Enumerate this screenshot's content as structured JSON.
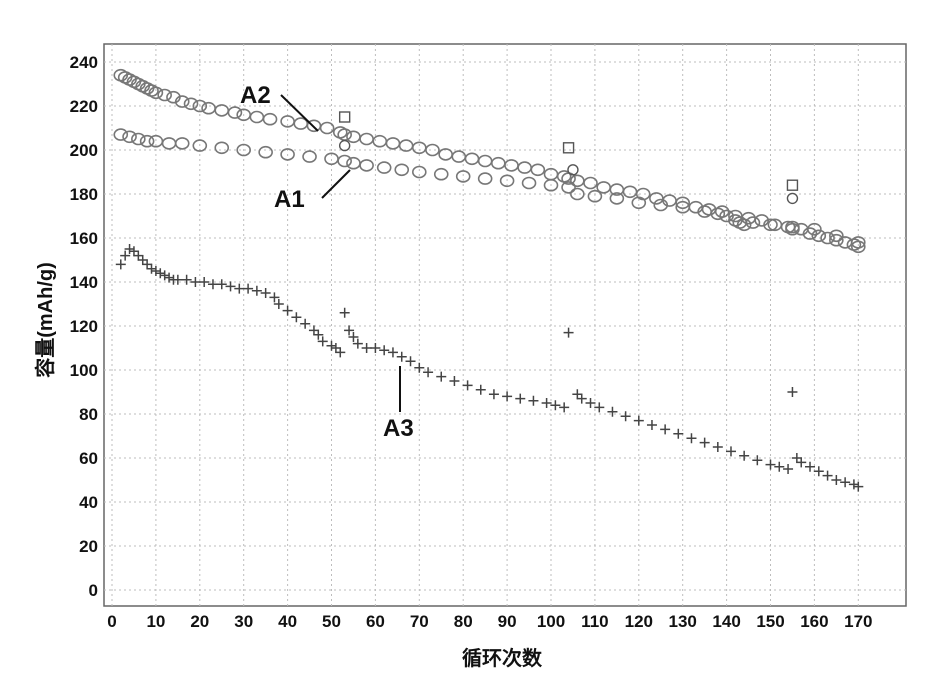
{
  "chart_data": {
    "type": "scatter",
    "xlabel": "循环次数",
    "ylabel": "容量(mAh/g)",
    "xlim": [
      0,
      180
    ],
    "ylim": [
      0,
      245
    ],
    "x_ticks": [
      "0",
      "10",
      "20",
      "30",
      "40",
      "50",
      "60",
      "70",
      "80",
      "90",
      "100",
      "110",
      "120",
      "130",
      "140",
      "150",
      "160",
      "170"
    ],
    "y_ticks": [
      "0",
      "20",
      "40",
      "60",
      "80",
      "100",
      "120",
      "140",
      "160",
      "180",
      "200",
      "220",
      "240"
    ],
    "grid": true,
    "series": [
      {
        "name": "A2",
        "marker": "circle",
        "points": [
          [
            2,
            234
          ],
          [
            3,
            233
          ],
          [
            4,
            232
          ],
          [
            5,
            231
          ],
          [
            6,
            230
          ],
          [
            7,
            229
          ],
          [
            8,
            228
          ],
          [
            9,
            227
          ],
          [
            10,
            226
          ],
          [
            12,
            225
          ],
          [
            14,
            224
          ],
          [
            16,
            222
          ],
          [
            18,
            221
          ],
          [
            20,
            220
          ],
          [
            22,
            219
          ],
          [
            25,
            218
          ],
          [
            28,
            217
          ],
          [
            30,
            216
          ],
          [
            33,
            215
          ],
          [
            36,
            214
          ],
          [
            40,
            213
          ],
          [
            43,
            212
          ],
          [
            46,
            211
          ],
          [
            49,
            210
          ],
          [
            52,
            208
          ],
          [
            53,
            207
          ],
          [
            55,
            206
          ],
          [
            58,
            205
          ],
          [
            61,
            204
          ],
          [
            64,
            203
          ],
          [
            67,
            202
          ],
          [
            70,
            201
          ],
          [
            73,
            200
          ],
          [
            76,
            198
          ],
          [
            79,
            197
          ],
          [
            82,
            196
          ],
          [
            85,
            195
          ],
          [
            88,
            194
          ],
          [
            91,
            193
          ],
          [
            94,
            192
          ],
          [
            97,
            191
          ],
          [
            100,
            189
          ],
          [
            103,
            188
          ],
          [
            104,
            187
          ],
          [
            106,
            186
          ],
          [
            109,
            185
          ],
          [
            112,
            183
          ],
          [
            115,
            182
          ],
          [
            118,
            181
          ],
          [
            121,
            180
          ],
          [
            124,
            178
          ],
          [
            127,
            177
          ],
          [
            130,
            176
          ],
          [
            133,
            174
          ],
          [
            136,
            173
          ],
          [
            139,
            172
          ],
          [
            142,
            170
          ],
          [
            145,
            169
          ],
          [
            148,
            168
          ],
          [
            151,
            166
          ],
          [
            154,
            165
          ],
          [
            155,
            164
          ],
          [
            157,
            164
          ],
          [
            159,
            162
          ],
          [
            161,
            161
          ],
          [
            163,
            160
          ],
          [
            165,
            159
          ],
          [
            167,
            158
          ],
          [
            169,
            157
          ],
          [
            170,
            156
          ]
        ]
      },
      {
        "name": "A1",
        "marker": "circle",
        "points": [
          [
            2,
            207
          ],
          [
            4,
            206
          ],
          [
            6,
            205
          ],
          [
            8,
            204
          ],
          [
            10,
            204
          ],
          [
            13,
            203
          ],
          [
            16,
            203
          ],
          [
            20,
            202
          ],
          [
            25,
            201
          ],
          [
            30,
            200
          ],
          [
            35,
            199
          ],
          [
            40,
            198
          ],
          [
            45,
            197
          ],
          [
            50,
            196
          ],
          [
            53,
            195
          ],
          [
            55,
            194
          ],
          [
            58,
            193
          ],
          [
            62,
            192
          ],
          [
            66,
            191
          ],
          [
            70,
            190
          ],
          [
            75,
            189
          ],
          [
            80,
            188
          ],
          [
            85,
            187
          ],
          [
            90,
            186
          ],
          [
            95,
            185
          ],
          [
            100,
            184
          ],
          [
            104,
            183
          ],
          [
            106,
            180
          ],
          [
            110,
            179
          ],
          [
            115,
            178
          ],
          [
            120,
            176
          ],
          [
            125,
            175
          ],
          [
            130,
            174
          ],
          [
            135,
            172
          ],
          [
            138,
            171
          ],
          [
            140,
            170
          ],
          [
            142,
            168
          ],
          [
            143,
            167
          ],
          [
            144,
            166
          ],
          [
            146,
            167
          ],
          [
            150,
            166
          ],
          [
            155,
            165
          ],
          [
            160,
            164
          ],
          [
            165,
            161
          ],
          [
            170,
            158
          ]
        ]
      },
      {
        "name": "A2 (squares)",
        "marker": "square",
        "points": [
          [
            53,
            215
          ],
          [
            104,
            201
          ],
          [
            155,
            184
          ]
        ]
      },
      {
        "name": "A1 (open circles)",
        "marker": "circle-open",
        "points": [
          [
            53,
            202
          ],
          [
            105,
            191
          ],
          [
            155,
            178
          ]
        ]
      },
      {
        "name": "A3",
        "marker": "plus",
        "points": [
          [
            2,
            148
          ],
          [
            3,
            152
          ],
          [
            4,
            155
          ],
          [
            5,
            154
          ],
          [
            6,
            152
          ],
          [
            7,
            150
          ],
          [
            8,
            148
          ],
          [
            9,
            146
          ],
          [
            10,
            145
          ],
          [
            11,
            144
          ],
          [
            12,
            143
          ],
          [
            13,
            142
          ],
          [
            14,
            141
          ],
          [
            15,
            141
          ],
          [
            17,
            141
          ],
          [
            19,
            140
          ],
          [
            21,
            140
          ],
          [
            23,
            139
          ],
          [
            25,
            139
          ],
          [
            27,
            138
          ],
          [
            29,
            137
          ],
          [
            31,
            137
          ],
          [
            33,
            136
          ],
          [
            35,
            135
          ],
          [
            37,
            133
          ],
          [
            38,
            130
          ],
          [
            40,
            127
          ],
          [
            42,
            124
          ],
          [
            44,
            121
          ],
          [
            46,
            118
          ],
          [
            47,
            116
          ],
          [
            48,
            113
          ],
          [
            50,
            111
          ],
          [
            51,
            110
          ],
          [
            52,
            108
          ],
          [
            53,
            126
          ],
          [
            54,
            118
          ],
          [
            55,
            115
          ],
          [
            56,
            112
          ],
          [
            58,
            110
          ],
          [
            60,
            110
          ],
          [
            62,
            109
          ],
          [
            64,
            108
          ],
          [
            66,
            106
          ],
          [
            68,
            104
          ],
          [
            70,
            101
          ],
          [
            72,
            99
          ],
          [
            75,
            97
          ],
          [
            78,
            95
          ],
          [
            81,
            93
          ],
          [
            84,
            91
          ],
          [
            87,
            89
          ],
          [
            90,
            88
          ],
          [
            93,
            87
          ],
          [
            96,
            86
          ],
          [
            99,
            85
          ],
          [
            101,
            84
          ],
          [
            103,
            83
          ],
          [
            104,
            117
          ],
          [
            106,
            89
          ],
          [
            107,
            87
          ],
          [
            109,
            85
          ],
          [
            111,
            83
          ],
          [
            114,
            81
          ],
          [
            117,
            79
          ],
          [
            120,
            77
          ],
          [
            123,
            75
          ],
          [
            126,
            73
          ],
          [
            129,
            71
          ],
          [
            132,
            69
          ],
          [
            135,
            67
          ],
          [
            138,
            65
          ],
          [
            141,
            63
          ],
          [
            144,
            61
          ],
          [
            147,
            59
          ],
          [
            150,
            57
          ],
          [
            152,
            56
          ],
          [
            154,
            55
          ],
          [
            155,
            90
          ],
          [
            156,
            60
          ],
          [
            157,
            58
          ],
          [
            159,
            56
          ],
          [
            161,
            54
          ],
          [
            163,
            52
          ],
          [
            165,
            50
          ],
          [
            167,
            49
          ],
          [
            169,
            48
          ],
          [
            170,
            47
          ]
        ]
      }
    ],
    "annotations": [
      "A1",
      "A2",
      "A3"
    ]
  }
}
